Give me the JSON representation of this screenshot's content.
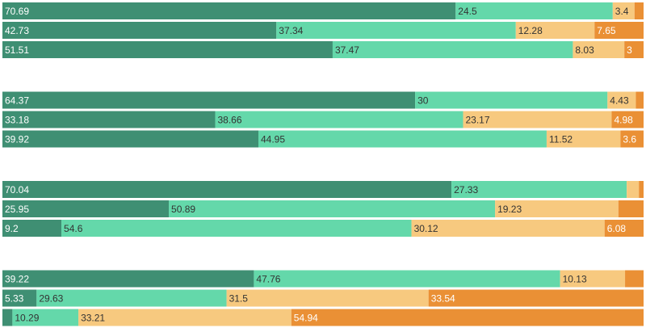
{
  "chart_data": {
    "type": "bar",
    "orientation": "horizontal",
    "stacked": true,
    "normalized_percent": true,
    "title": "",
    "xlabel": "",
    "ylabel": "",
    "xlim": [
      0,
      100
    ],
    "grid": false,
    "legend": "none",
    "colors": [
      "#3f8f73",
      "#64d8aa",
      "#f7c97f",
      "#ea9035"
    ],
    "label_colors": [
      "#ffffff",
      "#333333",
      "#333333",
      "#ffffff"
    ],
    "groups": [
      {
        "rows": [
          {
            "values": [
              70.69,
              24.5,
              3.4,
              1.41
            ],
            "labels": [
              "70.69",
              "24.5",
              "3.4",
              ""
            ]
          },
          {
            "values": [
              42.73,
              37.34,
              12.28,
              7.65
            ],
            "labels": [
              "42.73",
              "37.34",
              "12.28",
              "7.65"
            ]
          },
          {
            "values": [
              51.51,
              37.47,
              8.03,
              3
            ],
            "labels": [
              "51.51",
              "37.47",
              "8.03",
              "3"
            ]
          }
        ]
      },
      {
        "rows": [
          {
            "values": [
              64.37,
              30,
              4.43,
              1.2
            ],
            "labels": [
              "64.37",
              "30",
              "4.43",
              ""
            ]
          },
          {
            "values": [
              33.18,
              38.66,
              23.17,
              4.98
            ],
            "labels": [
              "33.18",
              "38.66",
              "23.17",
              "4.98"
            ]
          },
          {
            "values": [
              39.92,
              44.95,
              11.52,
              3.6
            ],
            "labels": [
              "39.92",
              "44.95",
              "11.52",
              "3.6"
            ]
          }
        ]
      },
      {
        "rows": [
          {
            "values": [
              70.04,
              27.33,
              1.9,
              0.73
            ],
            "labels": [
              "70.04",
              "27.33",
              "",
              ""
            ]
          },
          {
            "values": [
              25.95,
              50.89,
              19.23,
              3.93
            ],
            "labels": [
              "25.95",
              "50.89",
              "19.23",
              ""
            ]
          },
          {
            "values": [
              9.2,
              54.6,
              30.12,
              6.08
            ],
            "labels": [
              "9.2",
              "54.6",
              "30.12",
              "6.08"
            ]
          }
        ]
      },
      {
        "rows": [
          {
            "values": [
              39.22,
              47.76,
              10.13,
              2.89
            ],
            "labels": [
              "39.22",
              "47.76",
              "10.13",
              ""
            ]
          },
          {
            "values": [
              5.33,
              29.63,
              31.5,
              33.54
            ],
            "labels": [
              "5.33",
              "29.63",
              "31.5",
              "33.54"
            ]
          },
          {
            "values": [
              1.56,
              10.29,
              33.21,
              54.94
            ],
            "labels": [
              "",
              "10.29",
              "33.21",
              "54.94"
            ]
          }
        ]
      }
    ]
  }
}
